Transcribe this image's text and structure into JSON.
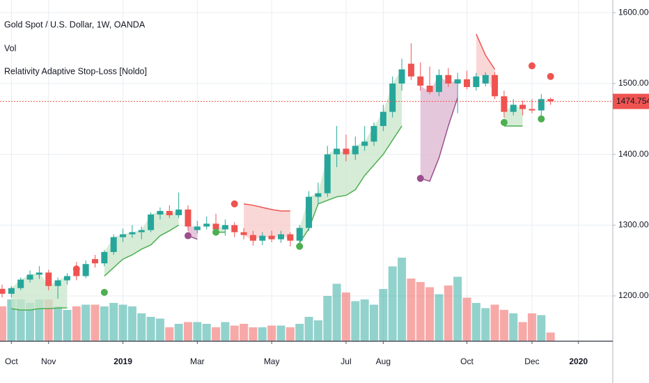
{
  "chart_data": {
    "type": "candlestick",
    "legend_lines": [
      "Gold Spot / U.S. Dollar, 1W, OANDA",
      "Vol",
      "Relativity Adaptive Stop-Loss [Noldo]"
    ],
    "categories": [
      null,
      "Oct",
      null,
      null,
      null,
      "Nov",
      null,
      null,
      null,
      null,
      null,
      null,
      null,
      "2019",
      null,
      null,
      null,
      null,
      null,
      null,
      null,
      "Mar",
      null,
      null,
      null,
      null,
      null,
      null,
      null,
      "May",
      null,
      null,
      null,
      null,
      null,
      null,
      null,
      "Jul",
      null,
      null,
      null,
      "Aug",
      null,
      null,
      null,
      null,
      null,
      null,
      null,
      null,
      "Oct",
      null,
      null,
      null,
      null,
      null,
      null,
      "Dec",
      null,
      null,
      null,
      null,
      "2020"
    ],
    "open": [
      1210,
      1203,
      1211,
      1223,
      1230,
      1233,
      1214,
      1222,
      1240,
      1228,
      1252,
      1246,
      1262,
      1283,
      1287,
      1290,
      1293,
      1315,
      1320,
      1314,
      1322,
      1293,
      1298,
      1302,
      1294,
      1300,
      1290,
      1286,
      1278,
      1285,
      1280,
      1287,
      1278,
      1296,
      1340,
      1345,
      1400,
      1408,
      1400,
      1412,
      1418,
      1440,
      1460,
      1500,
      1528,
      1510,
      1497,
      1488,
      1512,
      1500,
      1506,
      1495,
      1500,
      1512,
      1482,
      1460,
      1470,
      1464,
      1462,
      1478,
      null,
      null,
      null
    ],
    "high": [
      1216,
      1214,
      1226,
      1236,
      1242,
      1237,
      1226,
      1232,
      1248,
      1250,
      1258,
      1265,
      1287,
      1295,
      1300,
      1298,
      1318,
      1325,
      1328,
      1346,
      1328,
      1306,
      1312,
      1316,
      1308,
      1304,
      1296,
      1292,
      1290,
      1292,
      1292,
      1290,
      1300,
      1348,
      1360,
      1412,
      1440,
      1428,
      1425,
      1440,
      1445,
      1470,
      1510,
      1535,
      1557,
      1530,
      1524,
      1520,
      1522,
      1515,
      1518,
      1515,
      1516,
      1516,
      1490,
      1478,
      1476,
      1478,
      1485,
      1480,
      null,
      null,
      null
    ],
    "low": [
      1198,
      1198,
      1208,
      1219,
      1224,
      1208,
      1196,
      1216,
      1222,
      1225,
      1240,
      1242,
      1258,
      1276,
      1282,
      1280,
      1290,
      1308,
      1310,
      1310,
      1292,
      1288,
      1294,
      1290,
      1285,
      1283,
      1280,
      1271,
      1272,
      1276,
      1275,
      1270,
      1272,
      1292,
      1330,
      1340,
      1382,
      1390,
      1392,
      1405,
      1412,
      1433,
      1452,
      1490,
      1505,
      1490,
      1485,
      1482,
      1495,
      1458,
      1492,
      1490,
      1496,
      1478,
      1452,
      1455,
      1455,
      1458,
      1454,
      1470,
      null,
      null,
      null
    ],
    "close": [
      1203,
      1211,
      1223,
      1230,
      1233,
      1214,
      1222,
      1228,
      1228,
      1245,
      1246,
      1262,
      1283,
      1287,
      1290,
      1293,
      1315,
      1320,
      1314,
      1322,
      1298,
      1298,
      1302,
      1294,
      1300,
      1290,
      1286,
      1278,
      1285,
      1280,
      1287,
      1278,
      1296,
      1340,
      1345,
      1400,
      1408,
      1400,
      1412,
      1418,
      1440,
      1460,
      1500,
      1520,
      1510,
      1497,
      1488,
      1512,
      1500,
      1506,
      1495,
      1510,
      1512,
      1482,
      1460,
      1470,
      1464,
      1462,
      1478,
      1475,
      null,
      null,
      null
    ],
    "volume": [
      40,
      48,
      48,
      44,
      48,
      48,
      40,
      36,
      40,
      42,
      42,
      40,
      44,
      42,
      40,
      32,
      28,
      26,
      16,
      20,
      22,
      22,
      20,
      16,
      22,
      18,
      20,
      16,
      16,
      18,
      18,
      16,
      20,
      28,
      24,
      52,
      66,
      56,
      46,
      48,
      42,
      60,
      86,
      96,
      72,
      68,
      62,
      54,
      64,
      74,
      50,
      44,
      38,
      42,
      36,
      32,
      22,
      32,
      30,
      10,
      null,
      null,
      null
    ],
    "volume_lim": [
      0,
      100
    ],
    "up_color": "#26a69a",
    "down_color": "#ef5350",
    "long_stop": {
      "color": "#4caf50",
      "fill": "#c8e6c9",
      "values": [
        null,
        1182,
        1180,
        1180,
        1182,
        1182,
        1183,
        1183,
        null,
        null,
        null,
        1228,
        1240,
        1252,
        1258,
        1266,
        1272,
        1285,
        1292,
        1300,
        null,
        null,
        null,
        1290,
        1290,
        null,
        null,
        null,
        null,
        null,
        null,
        null,
        1275,
        1295,
        1330,
        1335,
        1340,
        1342,
        1350,
        1370,
        1385,
        1400,
        1420,
        1440,
        null,
        null,
        null,
        null,
        null,
        null,
        null,
        null,
        null,
        null,
        1440,
        1440,
        1440,
        null,
        null,
        null,
        null,
        null,
        null
      ]
    },
    "short_stop": {
      "color": "#ef5350",
      "fill": "#f8c9c9",
      "values": [
        null,
        null,
        null,
        null,
        null,
        null,
        null,
        null,
        null,
        null,
        null,
        null,
        null,
        null,
        null,
        null,
        null,
        null,
        null,
        null,
        null,
        null,
        null,
        null,
        null,
        null,
        1330,
        1328,
        1325,
        1322,
        1320,
        1320,
        null,
        null,
        null,
        null,
        null,
        null,
        null,
        null,
        null,
        null,
        null,
        null,
        null,
        null,
        null,
        null,
        null,
        null,
        null,
        1570,
        1540,
        1520,
        null,
        null,
        null,
        null,
        null,
        null,
        null,
        null,
        null
      ]
    },
    "trail_stop": {
      "color": "#9c4f8c",
      "fill": "#dcb4cf",
      "values": [
        null,
        null,
        null,
        null,
        null,
        null,
        null,
        null,
        null,
        null,
        null,
        null,
        null,
        null,
        null,
        null,
        null,
        null,
        null,
        null,
        1285,
        1280,
        null,
        null,
        null,
        null,
        null,
        null,
        null,
        null,
        null,
        null,
        null,
        null,
        null,
        null,
        null,
        null,
        null,
        null,
        null,
        null,
        null,
        null,
        null,
        1366,
        1362,
        1395,
        1440,
        1480,
        null,
        null,
        null,
        null,
        null,
        null,
        null,
        null,
        null,
        null,
        null,
        null,
        null
      ]
    },
    "long_signals": {
      "color": "#4caf50",
      "values": [
        null,
        null,
        null,
        null,
        null,
        null,
        null,
        null,
        null,
        null,
        null,
        1205,
        null,
        null,
        null,
        null,
        null,
        null,
        null,
        null,
        null,
        null,
        null,
        1290,
        null,
        null,
        null,
        null,
        null,
        null,
        null,
        null,
        1270,
        null,
        null,
        null,
        null,
        null,
        null,
        null,
        null,
        null,
        null,
        null,
        null,
        null,
        null,
        null,
        null,
        null,
        null,
        null,
        null,
        null,
        1445,
        null,
        null,
        null,
        1450,
        null,
        null,
        null,
        null
      ]
    },
    "short_signals": {
      "color": "#ef5350",
      "values": [
        null,
        null,
        null,
        null,
        null,
        null,
        null,
        null,
        1238,
        null,
        null,
        null,
        null,
        null,
        null,
        null,
        null,
        null,
        null,
        null,
        null,
        null,
        null,
        null,
        null,
        1330,
        null,
        null,
        null,
        null,
        null,
        null,
        null,
        null,
        null,
        null,
        null,
        null,
        null,
        null,
        null,
        null,
        null,
        null,
        null,
        null,
        null,
        null,
        null,
        null,
        null,
        null,
        null,
        null,
        null,
        null,
        null,
        1525,
        null,
        1510,
        null,
        null,
        null
      ]
    },
    "trail_signals": {
      "color": "#9c4f8c",
      "values": [
        null,
        null,
        null,
        null,
        null,
        null,
        null,
        null,
        null,
        null,
        null,
        null,
        null,
        null,
        null,
        null,
        null,
        null,
        null,
        null,
        1285,
        null,
        null,
        null,
        null,
        null,
        null,
        null,
        null,
        null,
        null,
        null,
        null,
        null,
        null,
        null,
        null,
        null,
        null,
        null,
        null,
        null,
        null,
        null,
        null,
        1366,
        null,
        null,
        null,
        null,
        null,
        null,
        null,
        null,
        null,
        null,
        null,
        null,
        null,
        null,
        null,
        null,
        null
      ]
    },
    "last_price": {
      "value": 1474.754,
      "label": "1474.754",
      "color": "#ef5350"
    },
    "ylim": [
      1136,
      1618
    ],
    "yticks": [
      {
        "value": 1200,
        "label": "1200.000"
      },
      {
        "value": 1300,
        "label": "1300.000"
      },
      {
        "value": 1400,
        "label": "1400.000"
      },
      {
        "value": 1500,
        "label": "1500.000"
      },
      {
        "value": 1600,
        "label": "1600.000"
      }
    ],
    "grid": true
  }
}
